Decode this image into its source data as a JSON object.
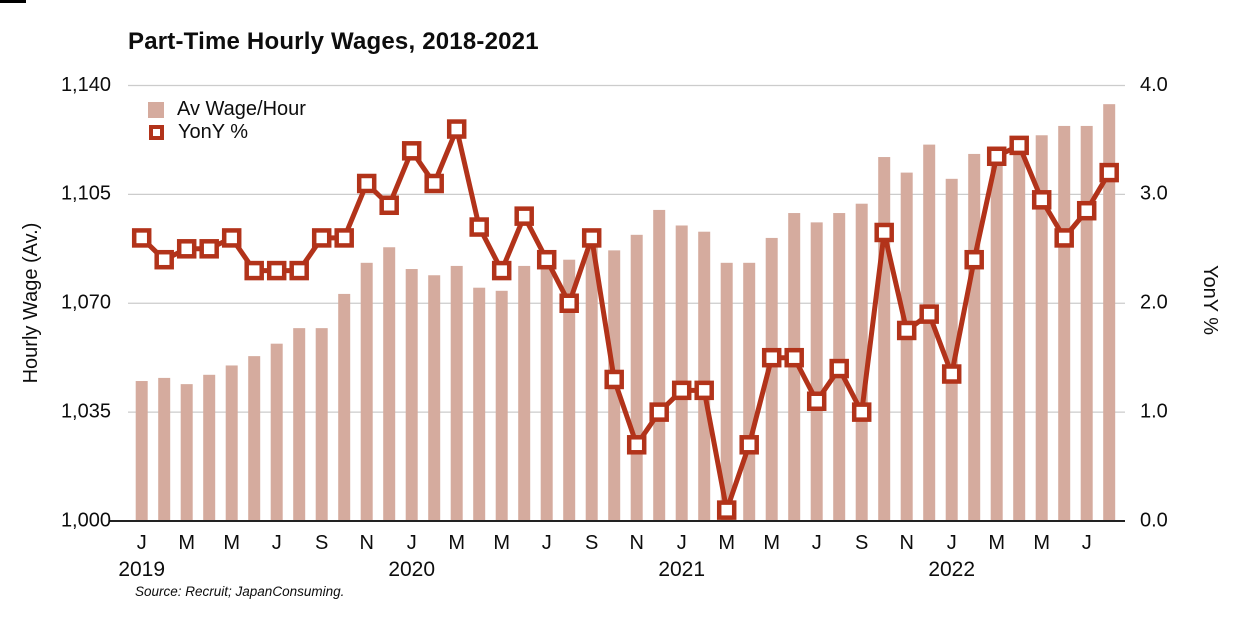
{
  "title": "Part-Time Hourly Wages, 2018-2021",
  "source_note": "Source: Recruit; JapanConsuming.",
  "legend": {
    "wage_label": "Av Wage/Hour",
    "yony_label": "YonY %"
  },
  "left_axis": {
    "title": "Hourly Wage (Av.)",
    "tick_labels": [
      "1,140",
      "1,105",
      "1,070",
      "1,035",
      "1,000"
    ],
    "tick_values": [
      1140,
      1105,
      1070,
      1035,
      1000
    ]
  },
  "right_axis": {
    "title": "YonY %",
    "tick_labels": [
      "4.0",
      "3.0",
      "2.0",
      "1.0",
      "0.0"
    ],
    "tick_values": [
      4.0,
      3.0,
      2.0,
      1.0,
      0.0
    ]
  },
  "x_axis": {
    "groups": [
      {
        "year": "2019",
        "month_labels": [
          "J",
          "M",
          "M",
          "J",
          "S",
          "N"
        ]
      },
      {
        "year": "2020",
        "month_labels": [
          "J",
          "M",
          "M",
          "J",
          "S",
          "N"
        ]
      },
      {
        "year": "2021",
        "month_labels": [
          "J",
          "M",
          "M",
          "J",
          "S",
          "N"
        ]
      },
      {
        "year": "2022",
        "month_labels": [
          "J",
          "M",
          "M",
          "J"
        ]
      }
    ]
  },
  "colors": {
    "bar": "#d5ab9e",
    "line": "#b2331a",
    "grid": "#cccccc",
    "axis": "#222222",
    "text": "#0d0d0d"
  },
  "chart_data": {
    "type": "bar+line",
    "x": [
      "2019-01",
      "2019-02",
      "2019-03",
      "2019-04",
      "2019-05",
      "2019-06",
      "2019-07",
      "2019-08",
      "2019-09",
      "2019-10",
      "2019-11",
      "2019-12",
      "2020-01",
      "2020-02",
      "2020-03",
      "2020-04",
      "2020-05",
      "2020-06",
      "2020-07",
      "2020-08",
      "2020-09",
      "2020-10",
      "2020-11",
      "2020-12",
      "2021-01",
      "2021-02",
      "2021-03",
      "2021-04",
      "2021-05",
      "2021-06",
      "2021-07",
      "2021-08",
      "2021-09",
      "2021-10",
      "2021-11",
      "2021-12",
      "2022-01",
      "2022-02",
      "2022-03",
      "2022-04",
      "2022-05",
      "2022-06",
      "2022-07",
      "2022-08"
    ],
    "series": [
      {
        "name": "Av Wage/Hour",
        "type": "bar",
        "y_axis": "left",
        "values": [
          1045,
          1046,
          1044,
          1047,
          1050,
          1053,
          1057,
          1062,
          1062,
          1073,
          1083,
          1088,
          1081,
          1079,
          1082,
          1075,
          1074,
          1082,
          1083,
          1084,
          1090,
          1087,
          1092,
          1100,
          1095,
          1093,
          1083,
          1083,
          1091,
          1099,
          1096,
          1099,
          1102,
          1117,
          1112,
          1121,
          1110,
          1118,
          1119,
          1121,
          1124,
          1127,
          1127,
          1134
        ]
      },
      {
        "name": "YonY %",
        "type": "line",
        "marker": "open-square",
        "y_axis": "right",
        "values": [
          2.6,
          2.4,
          2.5,
          2.5,
          2.6,
          2.3,
          2.3,
          2.3,
          2.6,
          2.6,
          3.1,
          2.9,
          3.4,
          3.1,
          3.6,
          2.7,
          2.3,
          2.8,
          2.4,
          2.0,
          2.6,
          1.3,
          0.7,
          1.0,
          1.2,
          1.2,
          0.1,
          0.7,
          1.5,
          1.5,
          1.1,
          1.4,
          1.0,
          2.65,
          1.75,
          1.9,
          1.35,
          2.4,
          3.35,
          3.45,
          2.95,
          2.6,
          2.85,
          3.2
        ]
      }
    ],
    "left_ylim": [
      1000,
      1140
    ],
    "right_ylim": [
      0.0,
      4.0
    ],
    "grid": "horizontal",
    "legend_position": "top-left-inside"
  }
}
